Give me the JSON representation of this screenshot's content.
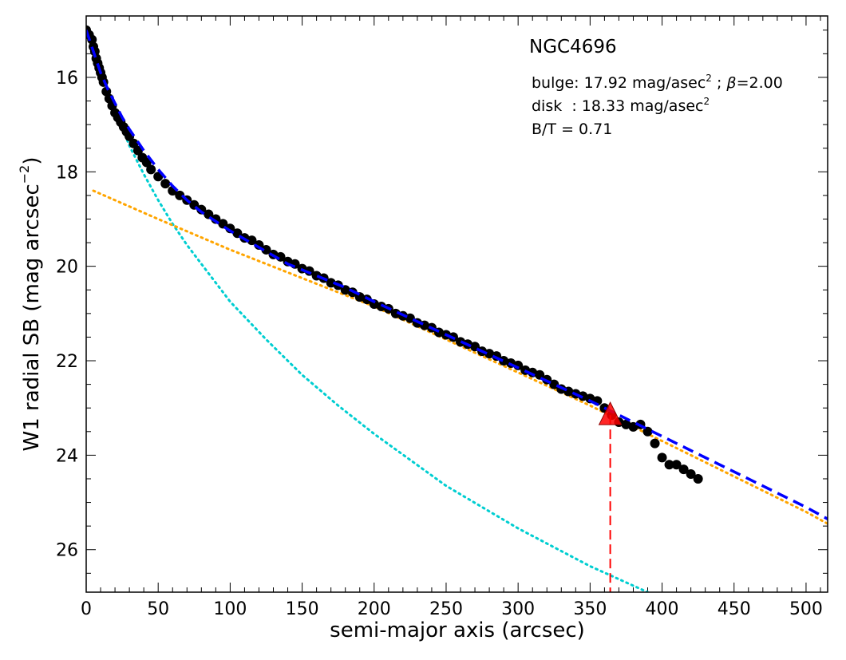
{
  "chart_data": {
    "type": "scatter",
    "title": "NGC4696",
    "xlabel": "semi-major axis (arcsec)",
    "ylabel_main": "W1 radial SB (mag arcsec",
    "ylabel_sup": "−2",
    "ylabel_close": ")",
    "xlim": [
      0,
      515
    ],
    "ylim": [
      26.9,
      14.7
    ],
    "y_inverted": true,
    "grid": false,
    "x_ticks": [
      0,
      50,
      100,
      150,
      200,
      250,
      300,
      350,
      400,
      450,
      500
    ],
    "x_tick_labels": [
      "0",
      "50",
      "100",
      "150",
      "200",
      "250",
      "300",
      "350",
      "400",
      "450",
      "500"
    ],
    "y_ticks": [
      16,
      18,
      20,
      22,
      24,
      26
    ],
    "y_tick_labels": [
      "16",
      "18",
      "20",
      "22",
      "24",
      "26"
    ],
    "annotations": {
      "bulge_prefix": "bulge: 17.92 mag/asec",
      "bulge_sup": "2",
      "bulge_mid": " ; ",
      "bulge_beta": "β",
      "bulge_suffix": "=2.00",
      "disk_prefix": "disk  : 18.33 mag/asec",
      "disk_sup": "2",
      "bt": "B/T = 0.71"
    },
    "series": [
      {
        "role": "observed profile",
        "style": "black filled circles",
        "x": [
          0,
          2,
          4,
          5,
          6,
          7,
          8,
          9,
          10,
          11,
          12,
          14,
          16,
          18,
          20,
          22,
          24,
          26,
          28,
          30,
          33,
          36,
          39,
          42,
          45,
          50,
          55,
          60,
          65,
          70,
          75,
          80,
          85,
          90,
          95,
          100,
          105,
          110,
          115,
          120,
          125,
          130,
          135,
          140,
          145,
          150,
          155,
          160,
          165,
          170,
          175,
          180,
          185,
          190,
          195,
          200,
          205,
          210,
          215,
          220,
          225,
          230,
          235,
          240,
          245,
          250,
          255,
          260,
          265,
          270,
          275,
          280,
          285,
          290,
          295,
          300,
          305,
          310,
          315,
          320,
          325,
          330,
          335,
          340,
          345,
          350,
          355,
          360,
          365,
          370,
          375,
          380,
          385,
          390,
          395,
          400,
          405,
          410,
          415,
          420,
          425
        ],
        "y": [
          15.0,
          15.1,
          15.2,
          15.35,
          15.45,
          15.6,
          15.7,
          15.8,
          15.9,
          16.0,
          16.1,
          16.3,
          16.45,
          16.6,
          16.75,
          16.85,
          16.95,
          17.05,
          17.15,
          17.25,
          17.4,
          17.55,
          17.7,
          17.8,
          17.95,
          18.1,
          18.25,
          18.4,
          18.5,
          18.6,
          18.7,
          18.8,
          18.9,
          19.0,
          19.1,
          19.2,
          19.3,
          19.4,
          19.45,
          19.55,
          19.65,
          19.75,
          19.8,
          19.9,
          19.95,
          20.05,
          20.1,
          20.2,
          20.25,
          20.35,
          20.4,
          20.5,
          20.55,
          20.65,
          20.7,
          20.8,
          20.85,
          20.9,
          21.0,
          21.05,
          21.1,
          21.2,
          21.25,
          21.3,
          21.4,
          21.45,
          21.5,
          21.6,
          21.65,
          21.7,
          21.8,
          21.85,
          21.9,
          22.0,
          22.05,
          22.1,
          22.2,
          22.25,
          22.3,
          22.4,
          22.5,
          22.6,
          22.65,
          22.7,
          22.75,
          22.8,
          22.85,
          23.0,
          23.15,
          23.3,
          23.35,
          23.4,
          23.35,
          23.5,
          23.75,
          24.05,
          24.2,
          24.2,
          24.3,
          24.4,
          24.5
        ]
      },
      {
        "role": "total model",
        "style": "blue dashed line",
        "x": [
          0,
          5,
          10,
          15,
          20,
          25,
          30,
          40,
          50,
          60,
          70,
          80,
          90,
          100,
          120,
          140,
          160,
          180,
          200,
          250,
          300,
          350,
          400,
          450,
          500,
          515
        ],
        "y": [
          15.0,
          15.45,
          15.9,
          16.25,
          16.55,
          16.85,
          17.1,
          17.55,
          17.95,
          18.3,
          18.6,
          18.85,
          19.05,
          19.25,
          19.6,
          19.95,
          20.2,
          20.45,
          20.75,
          21.45,
          22.15,
          22.85,
          23.6,
          24.35,
          25.1,
          25.35
        ]
      },
      {
        "role": "bulge component",
        "style": "cyan dotted line",
        "x": [
          0,
          5,
          10,
          15,
          20,
          25,
          30,
          40,
          50,
          60,
          70,
          80,
          100,
          125,
          150,
          175,
          200,
          250,
          300,
          350,
          390
        ],
        "y": [
          15.0,
          15.45,
          15.9,
          16.3,
          16.7,
          17.05,
          17.45,
          18.05,
          18.6,
          19.1,
          19.55,
          19.95,
          20.75,
          21.55,
          22.3,
          22.95,
          23.55,
          24.65,
          25.55,
          26.35,
          26.9
        ]
      },
      {
        "role": "disk component",
        "style": "orange dotted line",
        "x": [
          5,
          50,
          100,
          150,
          200,
          250,
          300,
          350,
          400,
          450,
          500,
          515
        ],
        "y": [
          18.4,
          19.0,
          19.65,
          20.25,
          20.85,
          21.55,
          22.25,
          22.95,
          23.7,
          24.45,
          25.2,
          25.45
        ]
      }
    ],
    "marker": {
      "role": "outer radius marker",
      "style": "red triangle with dashed vertical drop line",
      "x": 364,
      "y": 23.15
    },
    "colors": {
      "points": "#000000",
      "total": "#0000ff",
      "bulge": "#00ced1",
      "disk": "#ffa500",
      "marker": "#ff0000"
    }
  }
}
